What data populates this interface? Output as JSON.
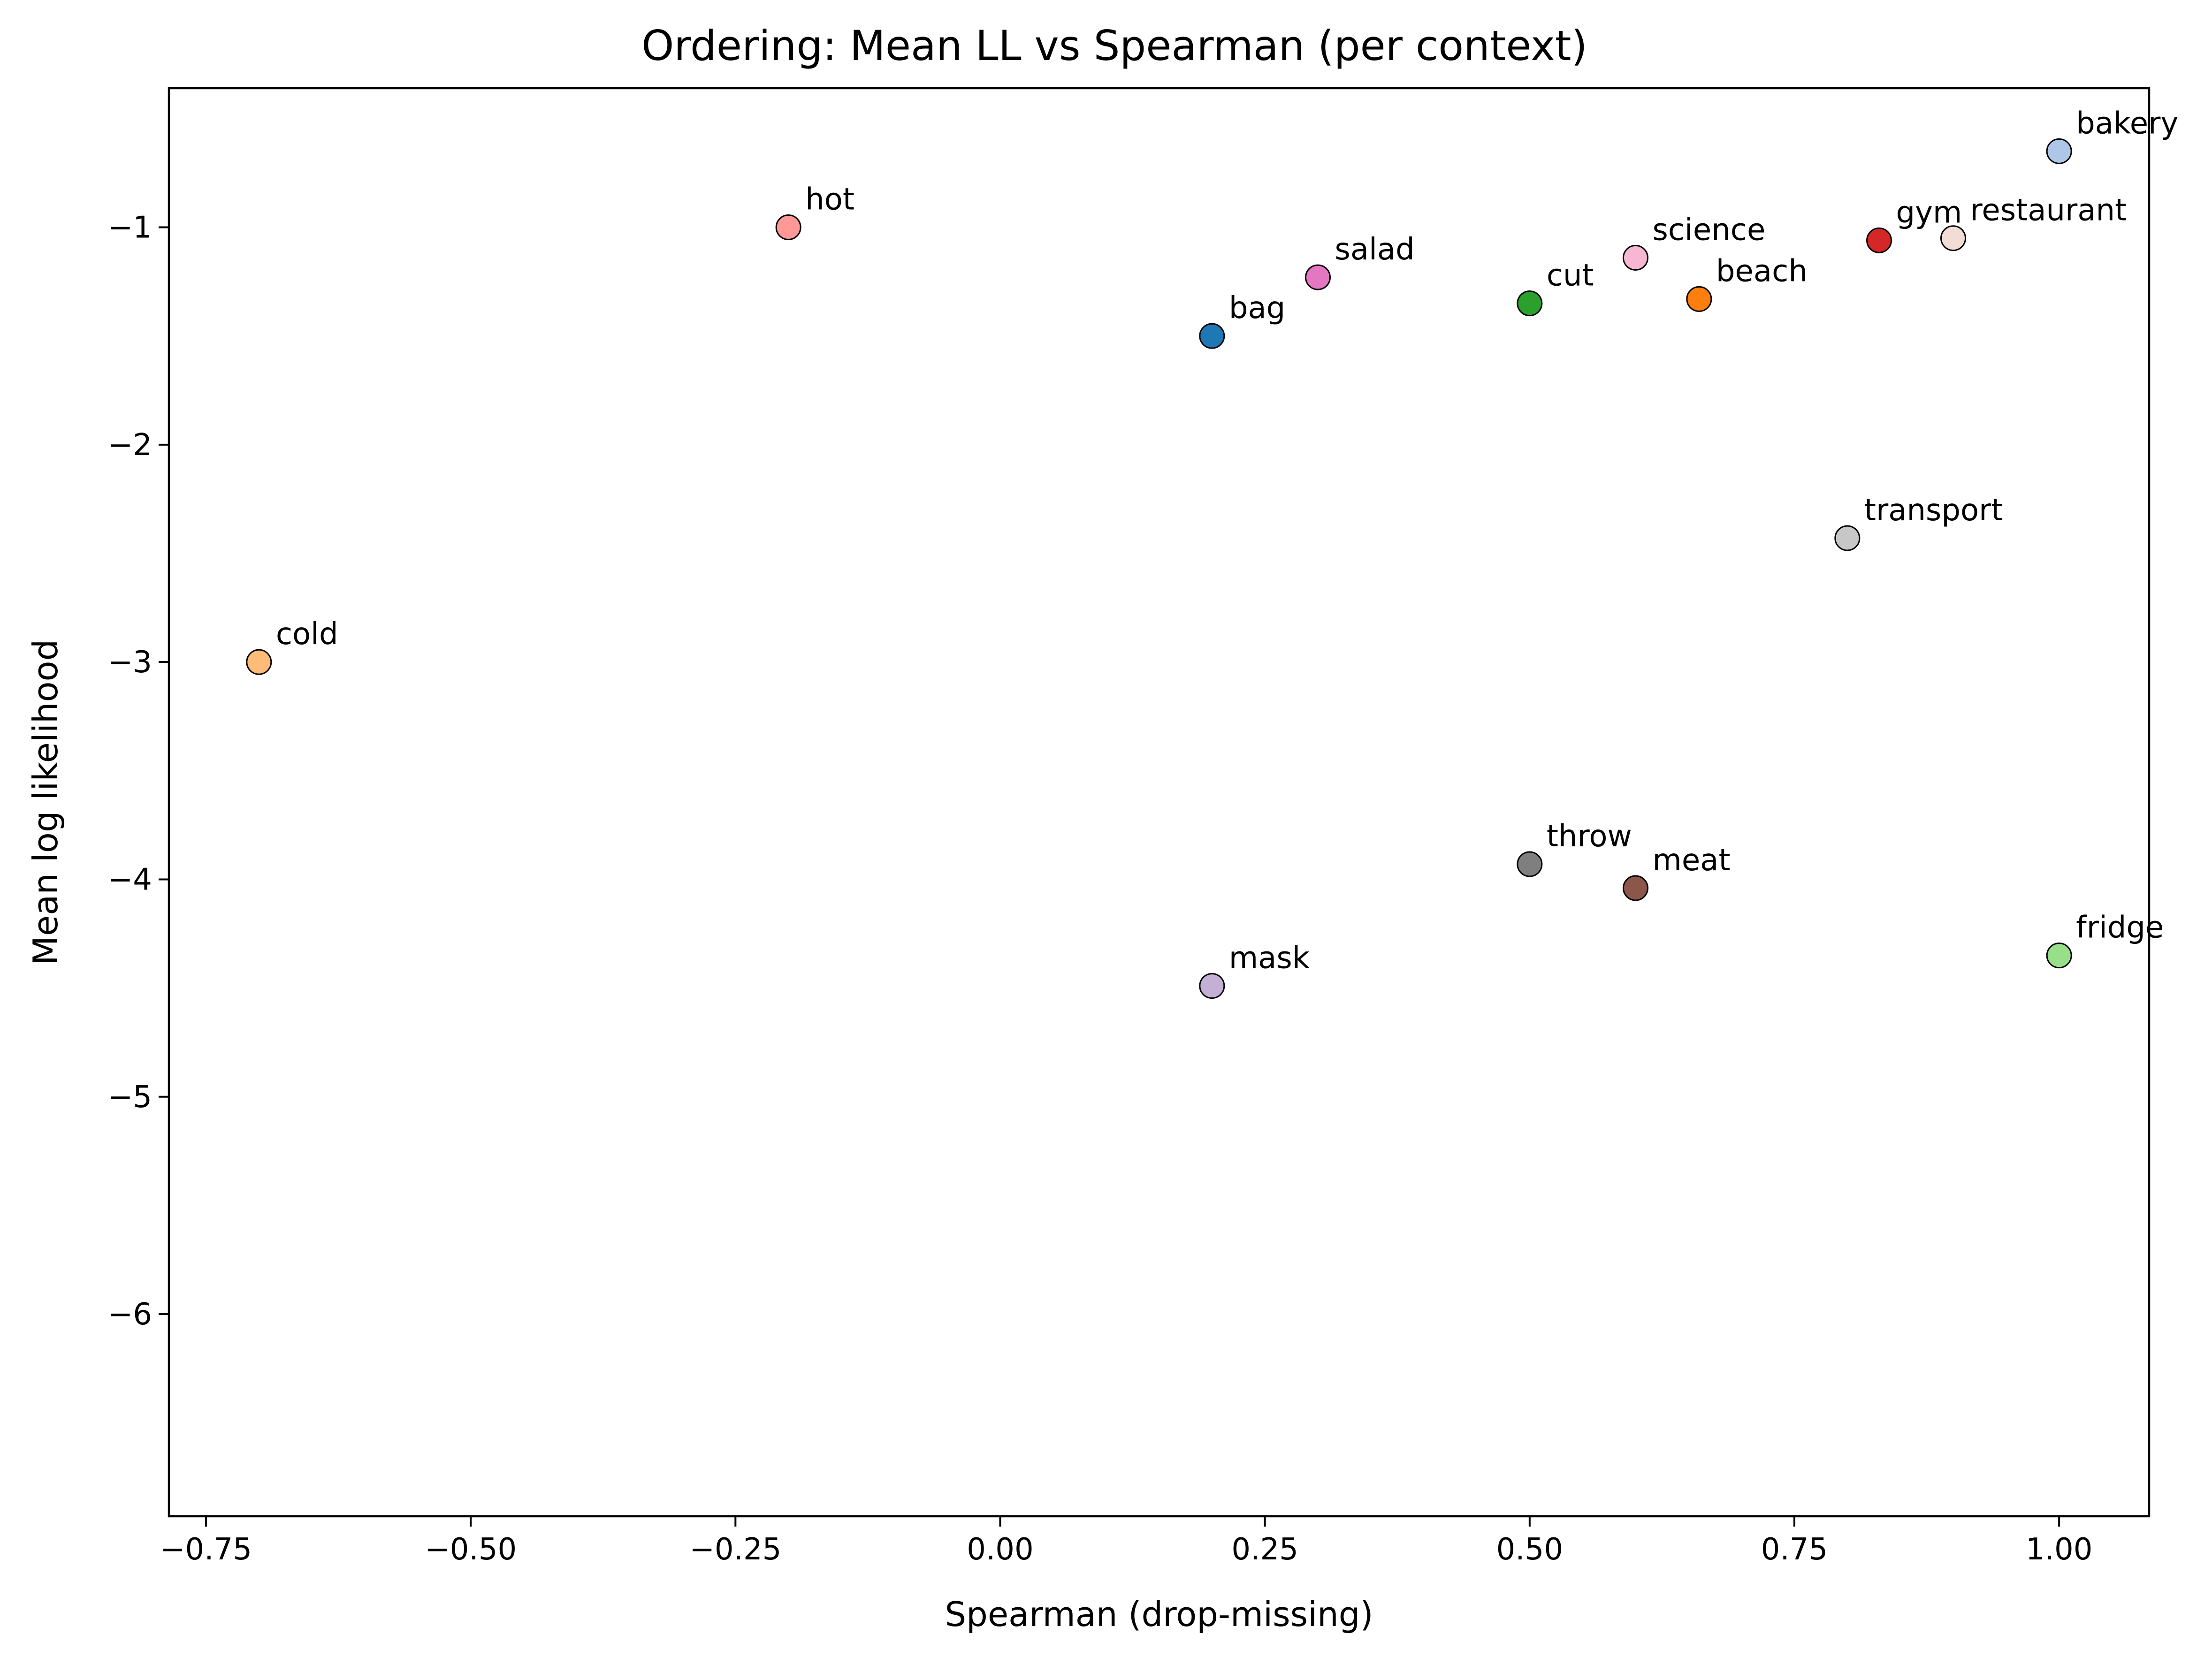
{
  "chart_data": {
    "type": "scatter",
    "title": "Ordering: Mean LL vs Spearman (per context)",
    "xlabel": "Spearman (drop-missing)",
    "ylabel": "Mean log likelihood",
    "xlim": [
      -0.785,
      1.085
    ],
    "ylim": [
      -6.93,
      -0.36
    ],
    "xticks": [
      {
        "value": -0.75,
        "label": "−0.75"
      },
      {
        "value": -0.5,
        "label": "−0.50"
      },
      {
        "value": -0.25,
        "label": "−0.25"
      },
      {
        "value": 0.0,
        "label": "0.00"
      },
      {
        "value": 0.25,
        "label": "0.25"
      },
      {
        "value": 0.5,
        "label": "0.50"
      },
      {
        "value": 0.75,
        "label": "0.75"
      },
      {
        "value": 1.0,
        "label": "1.00"
      }
    ],
    "yticks": [
      {
        "value": -1,
        "label": "−1"
      },
      {
        "value": -2,
        "label": "−2"
      },
      {
        "value": -3,
        "label": "−3"
      },
      {
        "value": -4,
        "label": "−4"
      },
      {
        "value": -5,
        "label": "−5"
      },
      {
        "value": -6,
        "label": "−6"
      }
    ],
    "grid": false,
    "points": [
      {
        "label": "bakery",
        "x": 1.0,
        "y": -0.65,
        "color": "#aec7e8"
      },
      {
        "label": "hot",
        "x": -0.2,
        "y": -1.0,
        "color": "#ff9896"
      },
      {
        "label": "gym",
        "x": 0.83,
        "y": -1.06,
        "color": "#d62728"
      },
      {
        "label": "restaurant",
        "x": 0.9,
        "y": -1.05,
        "color": "#f2dcd6"
      },
      {
        "label": "science",
        "x": 0.6,
        "y": -1.14,
        "color": "#f7b6d2"
      },
      {
        "label": "salad",
        "x": 0.3,
        "y": -1.23,
        "color": "#e377c2"
      },
      {
        "label": "cut",
        "x": 0.5,
        "y": -1.35,
        "color": "#2ca02c"
      },
      {
        "label": "beach",
        "x": 0.66,
        "y": -1.33,
        "color": "#ff7f0e"
      },
      {
        "label": "bag",
        "x": 0.2,
        "y": -1.5,
        "color": "#1f77b4"
      },
      {
        "label": "transport",
        "x": 0.8,
        "y": -2.43,
        "color": "#c7c7c7"
      },
      {
        "label": "cold",
        "x": -0.7,
        "y": -3.0,
        "color": "#ffbb78"
      },
      {
        "label": "throw",
        "x": 0.5,
        "y": -3.93,
        "color": "#7f7f7f"
      },
      {
        "label": "meat",
        "x": 0.6,
        "y": -4.04,
        "color": "#8c564b"
      },
      {
        "label": "fridge",
        "x": 1.0,
        "y": -4.35,
        "color": "#98df8a"
      },
      {
        "label": "mask",
        "x": 0.2,
        "y": -4.49,
        "color": "#c5b0d5"
      }
    ]
  }
}
